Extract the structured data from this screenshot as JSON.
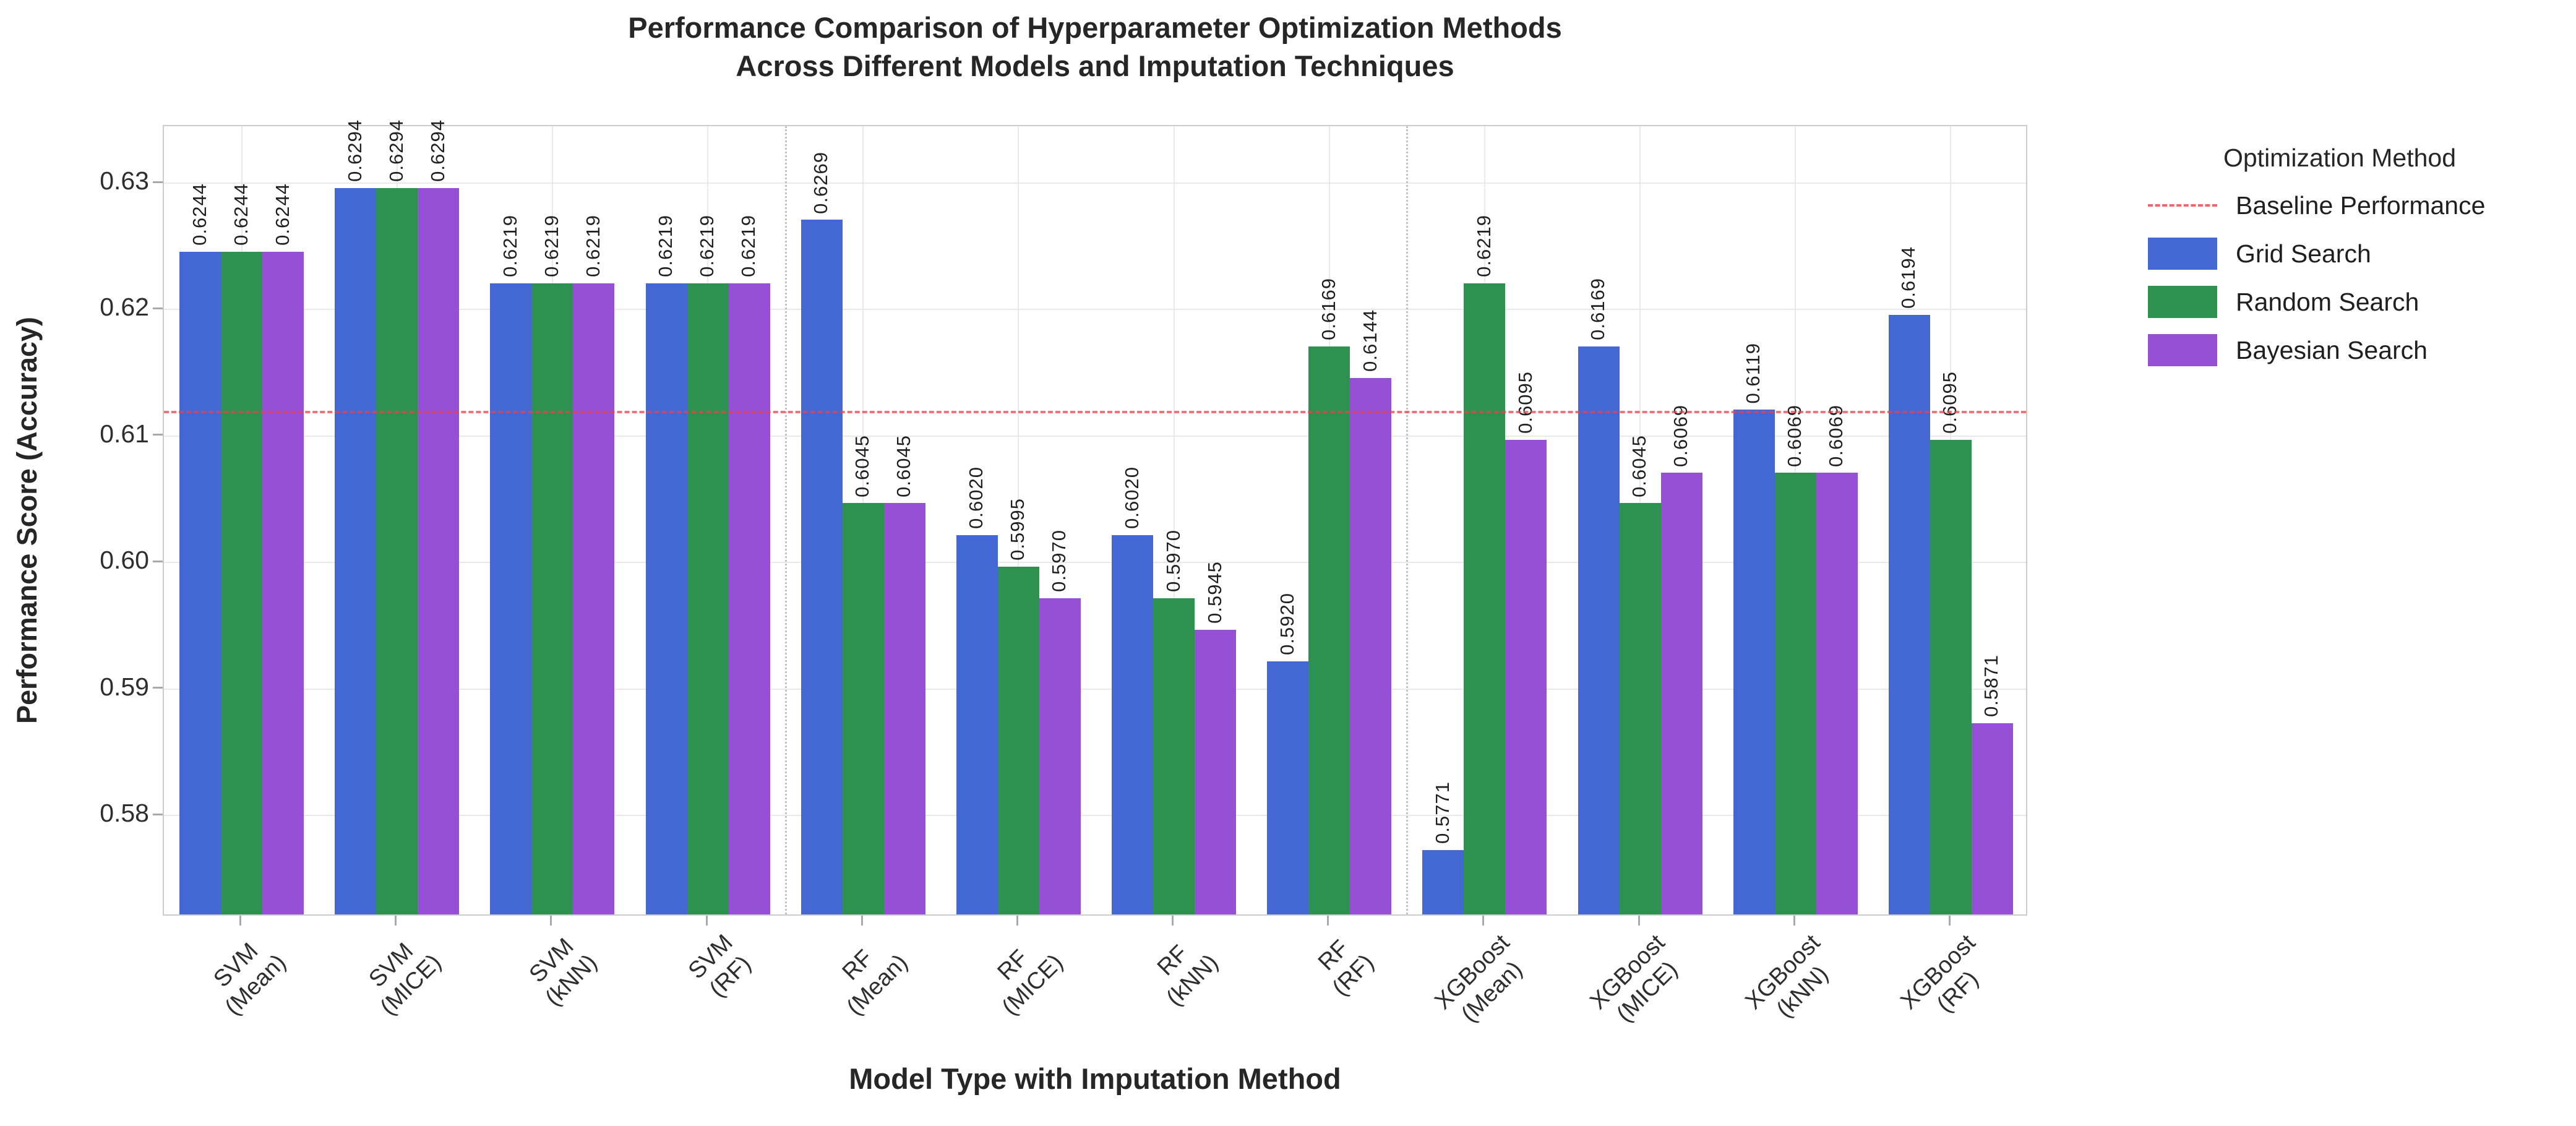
{
  "title": {
    "line1": "Performance Comparison of Hyperparameter Optimization Methods",
    "line2": "Across Different Models and Imputation Techniques"
  },
  "axes": {
    "y_label": "Performance Score (Accuracy)",
    "x_label": "Model Type with Imputation Method"
  },
  "legend": {
    "title": "Optimization Method",
    "items": [
      {
        "label": "Baseline Performance",
        "sample": "dash",
        "color_key": "baseline"
      },
      {
        "label": "Grid Search",
        "sample": "box",
        "color_key": "grid_search"
      },
      {
        "label": "Random Search",
        "sample": "box",
        "color_key": "random_search"
      },
      {
        "label": "Bayesian Search",
        "sample": "box",
        "color_key": "bayesian_search"
      }
    ]
  },
  "colors": {
    "grid_search": "#4368d4",
    "random_search": "#2d9150",
    "bayesian_search": "#9650d6",
    "baseline": "#ee4048",
    "gridline": "#e9e9e9",
    "frame": "#cccccc"
  },
  "chart_data": {
    "type": "bar",
    "title": "Performance Comparison of Hyperparameter Optimization Methods Across Different Models and Imputation Techniques",
    "xlabel": "Model Type with Imputation Method",
    "ylabel": "Performance Score (Accuracy)",
    "categories": [
      "SVM\n(Mean)",
      "SVM\n(MICE)",
      "SVM\n(kNN)",
      "SVM\n(RF)",
      "RF\n(Mean)",
      "RF\n(MICE)",
      "RF\n(kNN)",
      "RF\n(RF)",
      "XGBoost\n(Mean)",
      "XGBoost\n(MICE)",
      "XGBoost\n(kNN)",
      "XGBoost\n(RF)"
    ],
    "series": [
      {
        "name": "Grid Search",
        "color_key": "grid_search",
        "values": [
          0.6244,
          0.6294,
          0.6219,
          0.6219,
          0.6269,
          0.602,
          0.602,
          0.592,
          0.5771,
          0.6169,
          0.6119,
          0.6194
        ]
      },
      {
        "name": "Random Search",
        "color_key": "random_search",
        "values": [
          0.6244,
          0.6294,
          0.6219,
          0.6219,
          0.6045,
          0.5995,
          0.597,
          0.6169,
          0.6219,
          0.6045,
          0.6069,
          0.6095
        ]
      },
      {
        "name": "Bayesian Search",
        "color_key": "bayesian_search",
        "values": [
          0.6244,
          0.6294,
          0.6219,
          0.6219,
          0.6045,
          0.597,
          0.5945,
          0.6144,
          0.6095,
          0.6069,
          0.6069,
          0.5871
        ]
      }
    ],
    "baseline": 0.6119,
    "baseline_label": "Baseline Performance",
    "yticks": [
      0.58,
      0.59,
      0.6,
      0.61,
      0.62,
      0.63
    ],
    "ylim": [
      0.572,
      0.6345
    ],
    "value_label_decimals": 4,
    "grid": true,
    "legend_position": "right",
    "separators_after_category": [
      4,
      8
    ]
  }
}
